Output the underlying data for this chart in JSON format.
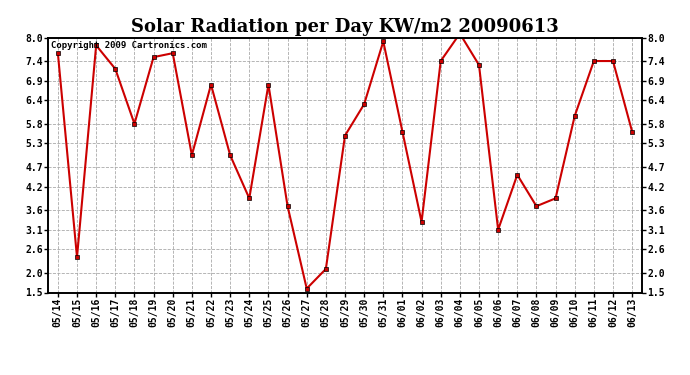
{
  "title": "Solar Radiation per Day KW/m2 20090613",
  "copyright_text": "Copyright 2009 Cartronics.com",
  "labels": [
    "05/14",
    "05/15",
    "05/16",
    "05/17",
    "05/18",
    "05/19",
    "05/20",
    "05/21",
    "05/22",
    "05/23",
    "05/24",
    "05/25",
    "05/26",
    "05/27",
    "05/28",
    "05/29",
    "05/30",
    "05/31",
    "06/01",
    "06/02",
    "06/03",
    "06/04",
    "06/05",
    "06/06",
    "06/07",
    "06/08",
    "06/09",
    "06/10",
    "06/11",
    "06/12",
    "06/13"
  ],
  "values": [
    7.6,
    2.4,
    7.8,
    7.2,
    5.8,
    7.5,
    7.6,
    5.0,
    6.8,
    5.0,
    3.9,
    6.8,
    3.7,
    1.6,
    2.1,
    5.5,
    6.3,
    7.9,
    5.6,
    3.3,
    7.4,
    8.1,
    7.3,
    3.1,
    4.5,
    3.7,
    3.9,
    6.0,
    7.4,
    7.4,
    5.6
  ],
  "line_color": "#cc0000",
  "marker": "s",
  "marker_size": 3,
  "bg_color": "#ffffff",
  "plot_bg_color": "#ffffff",
  "grid_color": "#aaaaaa",
  "ylim": [
    1.5,
    8.0
  ],
  "yticks": [
    1.5,
    2.0,
    2.6,
    3.1,
    3.6,
    4.2,
    4.7,
    5.3,
    5.8,
    6.4,
    6.9,
    7.4,
    8.0
  ],
  "title_fontsize": 13,
  "tick_fontsize": 7,
  "copyright_fontsize": 6.5
}
